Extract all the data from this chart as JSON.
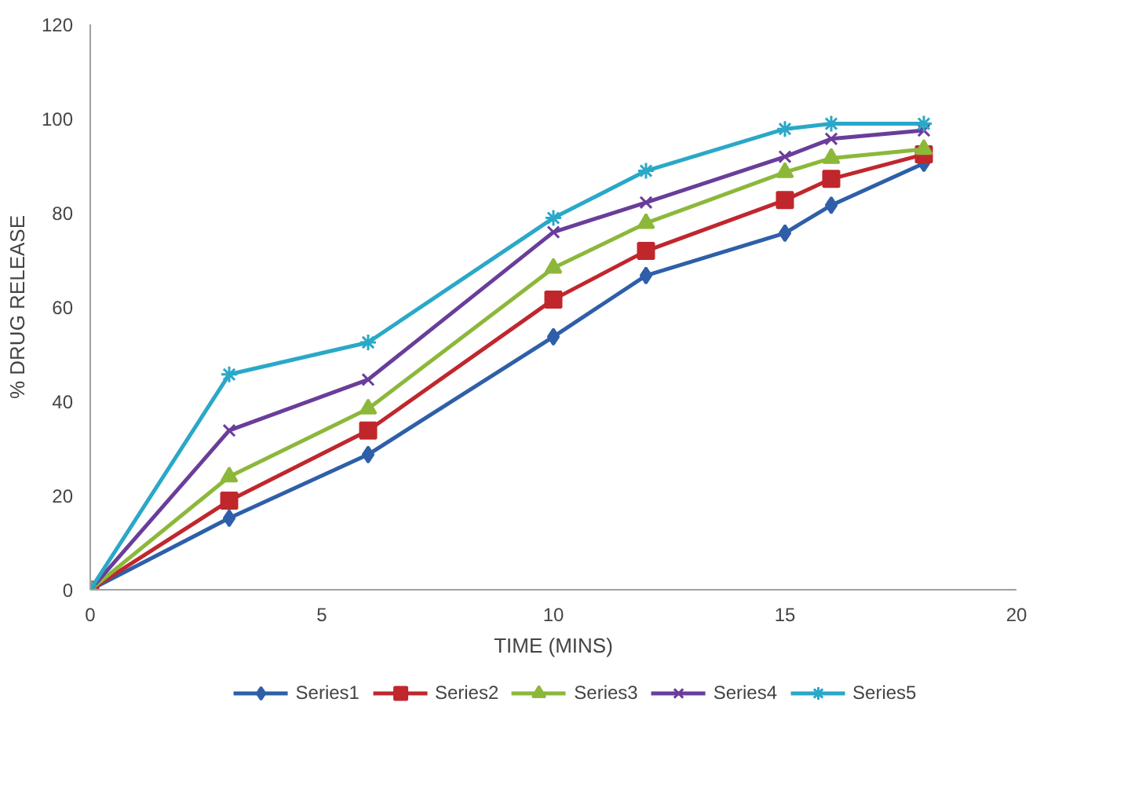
{
  "chart_data": {
    "type": "line",
    "xlabel": "TIME (MINS)",
    "ylabel": "% DRUG RELEASE",
    "x": [
      0,
      3,
      6,
      10,
      12,
      15,
      16,
      18
    ],
    "xlim": [
      0,
      20
    ],
    "xticks": [
      0,
      5,
      10,
      15,
      20
    ],
    "ylim": [
      0,
      120
    ],
    "yticks": [
      0,
      20,
      40,
      60,
      80,
      100,
      120
    ],
    "grid": false,
    "legend": "bottom",
    "line_style": "solid",
    "series": [
      {
        "name": "Series1",
        "color": "#2e5fa8",
        "marker": "diamond",
        "values": [
          0,
          15.2,
          28.7,
          53.7,
          66.7,
          75.7,
          81.6,
          90.5
        ]
      },
      {
        "name": "Series2",
        "color": "#c0272d",
        "marker": "square",
        "values": [
          0,
          18.9,
          33.8,
          61.6,
          71.9,
          82.7,
          87.2,
          92.4
        ]
      },
      {
        "name": "Series3",
        "color": "#8cb83a",
        "marker": "triangle",
        "values": [
          0,
          24.0,
          38.4,
          68.3,
          77.8,
          88.6,
          91.6,
          93.5
        ]
      },
      {
        "name": "Series4",
        "color": "#6a3d9a",
        "marker": "x",
        "values": [
          0,
          33.8,
          44.6,
          75.9,
          82.2,
          91.9,
          95.7,
          97.5
        ]
      },
      {
        "name": "Series5",
        "color": "#2aa8c8",
        "marker": "cross",
        "values": [
          0,
          45.7,
          52.5,
          78.9,
          88.9,
          97.8,
          98.9,
          98.9
        ]
      }
    ]
  }
}
